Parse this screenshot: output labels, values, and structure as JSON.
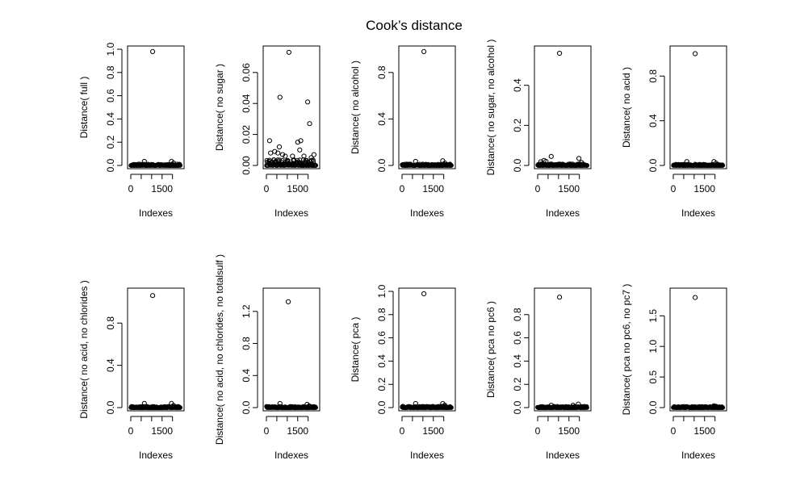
{
  "figure": {
    "title": "Cook’s distance"
  },
  "chart_data": [
    {
      "type": "scatter",
      "xlabel": "Indexes",
      "ylabel": "Distance( full )",
      "xlim": [
        0,
        2400
      ],
      "ylim": [
        0,
        1.0
      ],
      "xticks": [
        0,
        500,
        1000,
        1500,
        2000
      ],
      "xtick_labels": [
        "0",
        "",
        "",
        "1500",
        ""
      ],
      "yticks": [
        0,
        0.2,
        0.4,
        0.6,
        0.8,
        1.0
      ],
      "ytick_labels": [
        "0.0",
        "0.2",
        "0.4",
        "0.6",
        "0.8",
        "1.0"
      ],
      "outliers": [
        {
          "x": 1050,
          "y": 0.98
        },
        {
          "x": 650,
          "y": 0.035
        },
        {
          "x": 1950,
          "y": 0.035
        },
        {
          "x": 2050,
          "y": 0.02
        }
      ],
      "baseline_max": 0.012
    },
    {
      "type": "scatter",
      "xlabel": "Indexes",
      "ylabel": "Distance( no sugar )",
      "xlim": [
        0,
        2400
      ],
      "ylim": [
        0,
        0.075
      ],
      "xticks": [
        0,
        500,
        1000,
        1500,
        2000
      ],
      "xtick_labels": [
        "0",
        "",
        "",
        "1500",
        ""
      ],
      "yticks": [
        0,
        0.02,
        0.04,
        0.06
      ],
      "ytick_labels": [
        "0.00",
        "0.02",
        "0.04",
        "0.06"
      ],
      "outliers": [
        {
          "x": 1080,
          "y": 0.073
        },
        {
          "x": 650,
          "y": 0.044
        },
        {
          "x": 1980,
          "y": 0.041
        },
        {
          "x": 2070,
          "y": 0.027
        },
        {
          "x": 150,
          "y": 0.016
        },
        {
          "x": 1500,
          "y": 0.015
        },
        {
          "x": 1650,
          "y": 0.016
        },
        {
          "x": 620,
          "y": 0.012
        },
        {
          "x": 1600,
          "y": 0.01
        },
        {
          "x": 400,
          "y": 0.009
        },
        {
          "x": 200,
          "y": 0.008
        },
        {
          "x": 550,
          "y": 0.008
        },
        {
          "x": 780,
          "y": 0.007
        },
        {
          "x": 2280,
          "y": 0.007
        },
        {
          "x": 900,
          "y": 0.006
        },
        {
          "x": 1250,
          "y": 0.006
        },
        {
          "x": 1800,
          "y": 0.006
        },
        {
          "x": 2150,
          "y": 0.005
        }
      ],
      "baseline_max": 0.004
    },
    {
      "type": "scatter",
      "xlabel": "Indexes",
      "ylabel": "Distance( no alcohol )",
      "xlim": [
        0,
        2400
      ],
      "ylim": [
        0,
        1.0
      ],
      "xticks": [
        0,
        500,
        1000,
        1500,
        2000
      ],
      "xtick_labels": [
        "0",
        "",
        "",
        "1500",
        ""
      ],
      "yticks": [
        0,
        0.4,
        0.8
      ],
      "ytick_labels": [
        "0.0",
        "0.4",
        "0.8"
      ],
      "outliers": [
        {
          "x": 1050,
          "y": 0.98
        },
        {
          "x": 650,
          "y": 0.035
        },
        {
          "x": 1950,
          "y": 0.04
        },
        {
          "x": 2050,
          "y": 0.02
        }
      ],
      "baseline_max": 0.012
    },
    {
      "type": "scatter",
      "xlabel": "Indexes",
      "ylabel": "Distance( no sugar, no alcohol )",
      "xlim": [
        0,
        2400
      ],
      "ylim": [
        0,
        0.58
      ],
      "xticks": [
        0,
        500,
        1000,
        1500,
        2000
      ],
      "xtick_labels": [
        "0",
        "",
        "",
        "1500",
        ""
      ],
      "yticks": [
        0,
        0.2,
        0.4
      ],
      "ytick_labels": [
        "0.0",
        "0.2",
        "0.4"
      ],
      "outliers": [
        {
          "x": 1050,
          "y": 0.56
        },
        {
          "x": 650,
          "y": 0.045
        },
        {
          "x": 1980,
          "y": 0.035
        },
        {
          "x": 150,
          "y": 0.018
        },
        {
          "x": 300,
          "y": 0.025
        },
        {
          "x": 400,
          "y": 0.02
        },
        {
          "x": 2100,
          "y": 0.015
        }
      ],
      "baseline_max": 0.008
    },
    {
      "type": "scatter",
      "xlabel": "Indexes",
      "ylabel": "Distance( no acid )",
      "xlim": [
        0,
        2400
      ],
      "ylim": [
        0,
        1.04
      ],
      "xticks": [
        0,
        500,
        1000,
        1500,
        2000
      ],
      "xtick_labels": [
        "0",
        "",
        "",
        "1500",
        ""
      ],
      "yticks": [
        0,
        0.4,
        0.8
      ],
      "ytick_labels": [
        "0.0",
        "0.4",
        "0.8"
      ],
      "outliers": [
        {
          "x": 1050,
          "y": 1.0
        },
        {
          "x": 650,
          "y": 0.035
        },
        {
          "x": 1950,
          "y": 0.035
        },
        {
          "x": 2050,
          "y": 0.02
        }
      ],
      "baseline_max": 0.012
    },
    {
      "type": "scatter",
      "xlabel": "Indexes",
      "ylabel": "Distance( no acid, no chlorides )",
      "xlim": [
        0,
        2400
      ],
      "ylim": [
        0,
        1.1
      ],
      "xticks": [
        0,
        500,
        1000,
        1500,
        2000
      ],
      "xtick_labels": [
        "0",
        "",
        "",
        "1500",
        ""
      ],
      "yticks": [
        0,
        0.4,
        0.8
      ],
      "ytick_labels": [
        "0.0",
        "0.4",
        "0.8"
      ],
      "outliers": [
        {
          "x": 1050,
          "y": 1.06
        },
        {
          "x": 650,
          "y": 0.04
        },
        {
          "x": 1950,
          "y": 0.04
        },
        {
          "x": 2050,
          "y": 0.02
        }
      ],
      "baseline_max": 0.012
    },
    {
      "type": "scatter",
      "xlabel": "Indexes",
      "ylabel": "Distance( no acid, no chlorides, no totalsulf )",
      "xlim": [
        0,
        2400
      ],
      "ylim": [
        0,
        1.45
      ],
      "xticks": [
        0,
        500,
        1000,
        1500,
        2000
      ],
      "xtick_labels": [
        "0",
        "",
        "",
        "1500",
        ""
      ],
      "yticks": [
        0,
        0.4,
        0.8,
        1.2
      ],
      "ytick_labels": [
        "0.0",
        "0.4",
        "0.8",
        "1.2"
      ],
      "outliers": [
        {
          "x": 1050,
          "y": 1.32
        },
        {
          "x": 650,
          "y": 0.05
        },
        {
          "x": 1950,
          "y": 0.04
        },
        {
          "x": 2050,
          "y": 0.02
        }
      ],
      "baseline_max": 0.015
    },
    {
      "type": "scatter",
      "xlabel": "Indexes",
      "ylabel": "Distance( pca )",
      "xlim": [
        0,
        2400
      ],
      "ylim": [
        0,
        1.0
      ],
      "xticks": [
        0,
        500,
        1000,
        1500,
        2000
      ],
      "xtick_labels": [
        "0",
        "",
        "",
        "1500",
        ""
      ],
      "yticks": [
        0,
        0.2,
        0.4,
        0.6,
        0.8,
        1.0
      ],
      "ytick_labels": [
        "0.0",
        "0.2",
        "0.4",
        "0.6",
        "0.8",
        "1.0"
      ],
      "outliers": [
        {
          "x": 1050,
          "y": 0.98
        },
        {
          "x": 650,
          "y": 0.035
        },
        {
          "x": 1950,
          "y": 0.035
        },
        {
          "x": 2050,
          "y": 0.02
        }
      ],
      "baseline_max": 0.012
    },
    {
      "type": "scatter",
      "xlabel": "Indexes",
      "ylabel": "Distance( pca no pc6 )",
      "xlim": [
        0,
        2400
      ],
      "ylim": [
        0,
        1.0
      ],
      "xticks": [
        0,
        500,
        1000,
        1500,
        2000
      ],
      "xtick_labels": [
        "0",
        "",
        "",
        "1500",
        ""
      ],
      "yticks": [
        0,
        0.2,
        0.4,
        0.6,
        0.8
      ],
      "ytick_labels": [
        "0.0",
        "0.2",
        "0.4",
        "0.6",
        "0.8"
      ],
      "outliers": [
        {
          "x": 1050,
          "y": 0.95
        },
        {
          "x": 650,
          "y": 0.02
        },
        {
          "x": 1950,
          "y": 0.03
        },
        {
          "x": 1700,
          "y": 0.02
        }
      ],
      "baseline_max": 0.012
    },
    {
      "type": "scatter",
      "xlabel": "Indexes",
      "ylabel": "Distance( pca no pc6, no pc7 )",
      "xlim": [
        0,
        2400
      ],
      "ylim": [
        0,
        1.9
      ],
      "xticks": [
        0,
        500,
        1000,
        1500,
        2000
      ],
      "xtick_labels": [
        "0",
        "",
        "",
        "1500",
        ""
      ],
      "yticks": [
        0,
        0.5,
        1.0,
        1.5
      ],
      "ytick_labels": [
        "0.0",
        "0.5",
        "1.0",
        "1.5"
      ],
      "outliers": [
        {
          "x": 1050,
          "y": 1.8
        },
        {
          "x": 1950,
          "y": 0.03
        },
        {
          "x": 2050,
          "y": 0.02
        }
      ],
      "baseline_max": 0.02
    }
  ]
}
